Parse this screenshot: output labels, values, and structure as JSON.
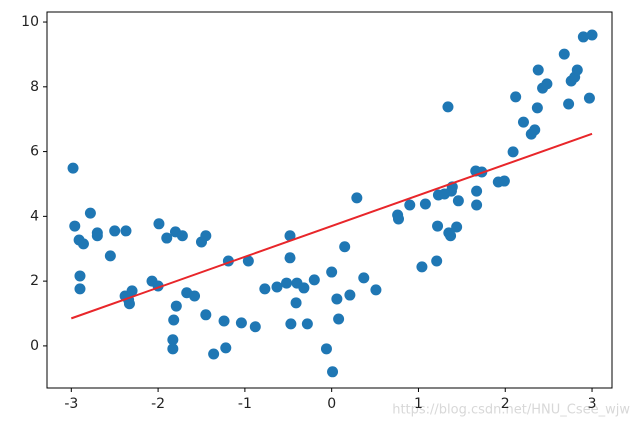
{
  "chart_data": {
    "type": "scatter",
    "x": [
      -2.98,
      -2.96,
      -2.91,
      -2.86,
      -2.9,
      -2.9,
      -2.78,
      -2.7,
      -2.7,
      -2.55,
      -2.5,
      -2.37,
      -2.38,
      -2.34,
      -2.33,
      -2.3,
      -2.07,
      -2.0,
      -1.99,
      -1.9,
      -1.8,
      -1.72,
      -1.83,
      -1.83,
      -1.82,
      -1.79,
      -1.67,
      -1.58,
      -1.5,
      -1.45,
      -1.45,
      -1.36,
      -1.24,
      -1.22,
      -1.19,
      -1.04,
      -0.96,
      -0.88,
      -0.77,
      -0.63,
      -0.52,
      -0.48,
      -0.48,
      -0.47,
      -0.4,
      -0.41,
      -0.32,
      -0.28,
      -0.2,
      -0.06,
      0.0,
      0.01,
      0.06,
      0.08,
      0.15,
      0.21,
      0.29,
      0.37,
      0.51,
      0.76,
      0.77,
      0.9,
      1.04,
      1.08,
      1.21,
      1.22,
      1.23,
      1.3,
      1.34,
      1.35,
      1.37,
      1.38,
      1.39,
      1.44,
      1.46,
      1.66,
      1.67,
      1.67,
      1.73,
      1.92,
      1.99,
      2.09,
      2.12,
      2.21,
      2.3,
      2.34,
      2.37,
      2.38,
      2.43,
      2.48,
      2.68,
      2.73,
      2.76,
      2.8,
      2.83,
      2.9,
      3.0,
      2.97
    ],
    "y": [
      5.49,
      3.7,
      3.27,
      3.15,
      2.16,
      1.76,
      4.1,
      3.49,
      3.4,
      2.78,
      3.55,
      3.55,
      1.54,
      1.42,
      1.3,
      1.7,
      2.0,
      1.85,
      3.77,
      3.33,
      3.52,
      3.4,
      0.19,
      -0.09,
      0.8,
      1.23,
      1.64,
      1.54,
      3.21,
      3.4,
      0.96,
      -0.25,
      0.77,
      -0.06,
      2.62,
      0.71,
      2.62,
      0.59,
      1.76,
      1.82,
      1.94,
      3.4,
      2.72,
      0.68,
      1.94,
      1.33,
      1.79,
      0.68,
      2.04,
      -0.09,
      2.28,
      -0.8,
      1.45,
      0.83,
      3.06,
      1.57,
      4.57,
      2.1,
      1.73,
      4.04,
      3.92,
      4.35,
      2.44,
      4.38,
      2.62,
      3.7,
      4.66,
      4.69,
      7.38,
      3.49,
      3.4,
      4.78,
      4.91,
      3.67,
      4.48,
      5.4,
      4.78,
      4.35,
      5.37,
      5.06,
      5.09,
      5.99,
      7.69,
      6.91,
      6.54,
      6.67,
      7.35,
      8.52,
      7.96,
      8.09,
      9.01,
      7.47,
      8.18,
      8.3,
      8.52,
      9.54,
      9.6,
      7.65
    ],
    "color": "#1f77b4",
    "line": {
      "x": [
        -3,
        3
      ],
      "y": [
        0.85,
        6.55
      ],
      "color": "#e8262a"
    },
    "xlim": [
      -3.28,
      3.23
    ],
    "ylim": [
      -1.3,
      10.31
    ],
    "xticks": [
      -3,
      -2,
      -1,
      0,
      1,
      2,
      3
    ],
    "yticks": [
      0,
      2,
      4,
      6,
      8,
      10
    ],
    "watermark": "https://blog.csdn.net/HNU_Csee_wjw"
  }
}
